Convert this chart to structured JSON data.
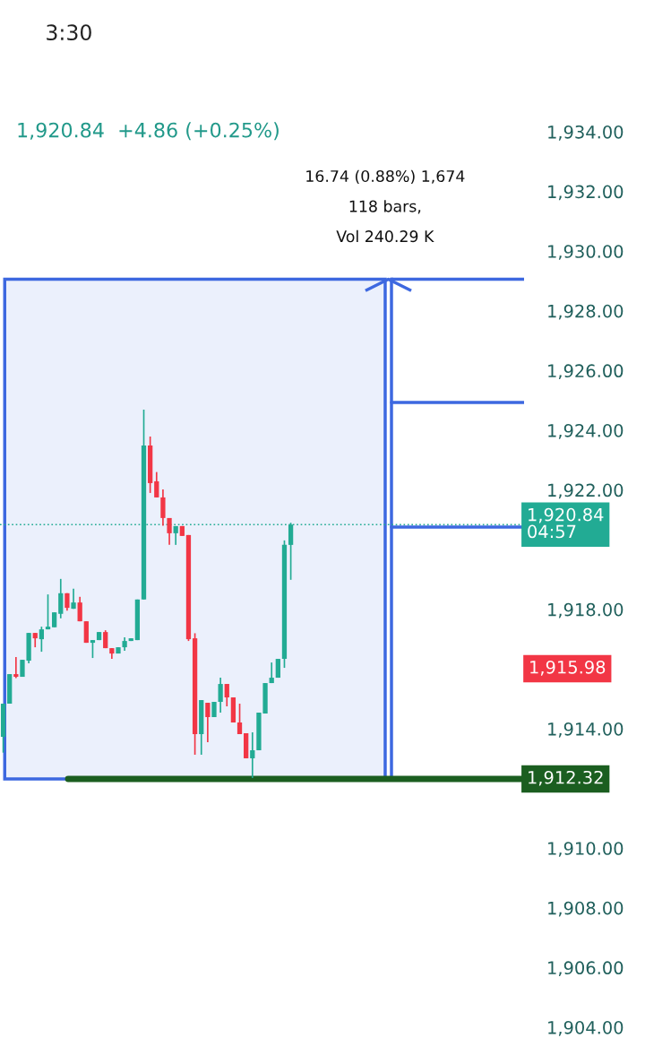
{
  "chart_data": {
    "type": "candlestick",
    "categories": [
      null,
      null,
      null,
      null,
      null,
      null,
      null,
      null,
      null,
      null,
      null,
      null,
      null,
      null,
      null,
      null,
      null,
      null,
      null,
      null,
      null,
      null,
      null,
      null,
      null,
      null,
      null,
      null,
      null,
      null,
      null,
      null,
      null,
      null,
      null,
      null,
      null,
      null,
      null,
      null,
      null,
      null,
      null,
      null,
      null,
      null,
      null,
      null,
      null,
      null,
      null,
      null,
      null,
      null,
      null,
      null,
      null,
      null,
      null,
      null,
      null,
      null,
      null,
      null,
      null,
      null,
      null,
      null,
      null,
      null,
      null,
      null,
      null,
      null,
      null,
      null,
      null,
      null,
      null,
      null,
      null,
      null
    ],
    "ohlc": [
      [
        1913.73,
        1914.84,
        1913.2,
        1914.84
      ],
      [
        1914.84,
        1915.83,
        1914.84,
        1915.83
      ],
      [
        1915.83,
        1916.4,
        1915.7,
        1915.74
      ],
      [
        1915.74,
        1916.31,
        1915.74,
        1916.31
      ],
      [
        1916.28,
        1917.21,
        1916.19,
        1917.21
      ],
      [
        1917.21,
        1917.21,
        1916.73,
        1917.03
      ],
      [
        1917.0,
        1917.42,
        1916.58,
        1917.33
      ],
      [
        1917.33,
        1918.5,
        1917.33,
        1917.42
      ],
      [
        1917.4,
        1917.9,
        1917.4,
        1917.9
      ],
      [
        1917.85,
        1919.02,
        1917.7,
        1918.54
      ],
      [
        1918.54,
        1918.54,
        1917.96,
        1918.05
      ],
      [
        1918.02,
        1918.69,
        1918.02,
        1918.23
      ],
      [
        1918.23,
        1918.42,
        1917.6,
        1917.6
      ],
      [
        1917.6,
        1917.6,
        1916.88,
        1916.88
      ],
      [
        1916.88,
        1916.97,
        1916.37,
        1916.97
      ],
      [
        1916.97,
        1917.24,
        1916.97,
        1917.24
      ],
      [
        1917.24,
        1917.3,
        1916.7,
        1916.7
      ],
      [
        1916.7,
        1916.7,
        1916.34,
        1916.52
      ],
      [
        1916.52,
        1916.73,
        1916.52,
        1916.73
      ],
      [
        1916.73,
        1917.06,
        1916.61,
        1916.94
      ],
      [
        1916.94,
        1917.03,
        1916.94,
        1917.03
      ],
      [
        1916.97,
        1918.33,
        1916.97,
        1918.33
      ],
      [
        1918.33,
        1924.69,
        1918.33,
        1923.49
      ],
      [
        1923.49,
        1923.79,
        1921.9,
        1922.23
      ],
      [
        1922.29,
        1922.6,
        1921.75,
        1921.75
      ],
      [
        1921.75,
        1922.02,
        1920.8,
        1921.06
      ],
      [
        1921.06,
        1921.06,
        1920.16,
        1920.55
      ],
      [
        1920.55,
        1920.79,
        1920.16,
        1920.79
      ],
      [
        1920.79,
        1920.79,
        1920.46,
        1920.46
      ],
      [
        1920.49,
        1920.49,
        1916.94,
        1917.0
      ],
      [
        1917.03,
        1917.2,
        1913.13,
        1913.82
      ],
      [
        1913.82,
        1914.96,
        1913.13,
        1914.96
      ],
      [
        1914.87,
        1914.87,
        1913.55,
        1914.39
      ],
      [
        1914.39,
        1914.9,
        1914.39,
        1914.9
      ],
      [
        1914.9,
        1915.71,
        1914.54,
        1915.5
      ],
      [
        1915.5,
        1915.5,
        1914.75,
        1915.05
      ],
      [
        1915.05,
        1915.05,
        1914.21,
        1914.21
      ],
      [
        1914.21,
        1914.84,
        1913.82,
        1913.82
      ],
      [
        1913.85,
        1913.85,
        1913.01,
        1913.01
      ],
      [
        1913.01,
        1913.88,
        1912.35,
        1913.28
      ],
      [
        1913.28,
        1914.54,
        1913.28,
        1914.54
      ],
      [
        1914.51,
        1915.53,
        1914.51,
        1915.53
      ],
      [
        1915.53,
        1916.22,
        1915.53,
        1915.71
      ],
      [
        1915.71,
        1916.34,
        1915.71,
        1916.34
      ],
      [
        1916.34,
        1920.31,
        1916.04,
        1920.16
      ],
      [
        1920.16,
        1920.9,
        1918.99,
        1920.84
      ],
      null,
      null,
      null,
      null,
      null,
      null,
      null,
      null,
      null,
      null,
      null,
      null,
      null,
      null,
      null,
      null,
      null,
      null,
      null,
      null,
      null,
      null,
      null,
      null,
      null,
      null,
      null,
      null,
      null,
      null,
      null,
      null,
      null,
      null,
      null,
      null
    ],
    "colors": [
      "#22ab94",
      "#22ab94",
      "#f23645",
      "#22ab94",
      "#22ab94",
      "#f23645",
      "#22ab94",
      "#22ab94",
      "#22ab94",
      "#22ab94",
      "#f23645",
      "#22ab94",
      "#f23645",
      "#f23645",
      "#22ab94",
      "#22ab94",
      "#f23645",
      "#f23645",
      "#22ab94",
      "#22ab94",
      "#22ab94",
      "#22ab94",
      "#22ab94",
      "#f23645",
      "#f23645",
      "#f23645",
      "#f23645",
      "#22ab94",
      "#f23645",
      "#f23645",
      "#f23645",
      "#22ab94",
      "#f23645",
      "#22ab94",
      "#22ab94",
      "#f23645",
      "#f23645",
      "#f23645",
      "#f23645",
      "#22ab94",
      "#22ab94",
      "#22ab94",
      "#22ab94",
      "#22ab94",
      "#22ab94",
      "#22ab94",
      null,
      null,
      null,
      null,
      null,
      null,
      null,
      null,
      null,
      null,
      null,
      null,
      null,
      null,
      null,
      null,
      null,
      null,
      null,
      null,
      null,
      null,
      null,
      null,
      null,
      null,
      null,
      null,
      null,
      null,
      null,
      null,
      null,
      null,
      null,
      null
    ],
    "ylim": [
      1904,
      1934
    ],
    "yticks": [
      {
        "value": 1904,
        "label": "1,904.00"
      },
      {
        "value": 1906,
        "label": "1,906.00"
      },
      {
        "value": 1908,
        "label": "1,908.00"
      },
      {
        "value": 1910,
        "label": "1,910.00"
      },
      {
        "value": 1914,
        "label": "1,914.00"
      },
      {
        "value": 1918,
        "label": "1,918.00"
      },
      {
        "value": 1922,
        "label": "1,922.00"
      },
      {
        "value": 1924,
        "label": "1,924.00"
      },
      {
        "value": 1926,
        "label": "1,926.00"
      },
      {
        "value": 1928,
        "label": "1,928.00"
      },
      {
        "value": 1930,
        "label": "1,930.00"
      },
      {
        "value": 1932,
        "label": "1,932.00"
      },
      {
        "value": 1934,
        "label": "1,934.00"
      }
    ],
    "tick_labels": "y",
    "grid": false,
    "ref_lines": [
      {
        "axis": "y",
        "value": 1920.84,
        "label": "1,920.84\n04:57",
        "color": "#22ab94",
        "line_style": "dotted"
      },
      {
        "axis": "y",
        "value": 1920.76,
        "color": "#3d68e0",
        "line_style": "solid"
      },
      {
        "axis": "y",
        "value": 1924.93,
        "color": "#3d68e0",
        "line_style": "solid"
      },
      {
        "axis": "y",
        "value": 1929.06,
        "color": "#3d68e0",
        "line_style": "solid"
      },
      {
        "axis": "y",
        "value": 1912.32,
        "label": "1,912.32",
        "color": "#1b5e20",
        "line_style": "solid"
      }
    ],
    "bands": [
      {
        "axis": "y",
        "from": 1912.32,
        "to": 1929.06,
        "color": "#3d68e0"
      }
    ],
    "annotations": [
      "3:30",
      "1,920.84  +4.86 (+0.25%)",
      "16.74 (0.88%) 1,674",
      "118 bars,",
      "Vol 240.29 K",
      "1,915.98"
    ]
  }
}
